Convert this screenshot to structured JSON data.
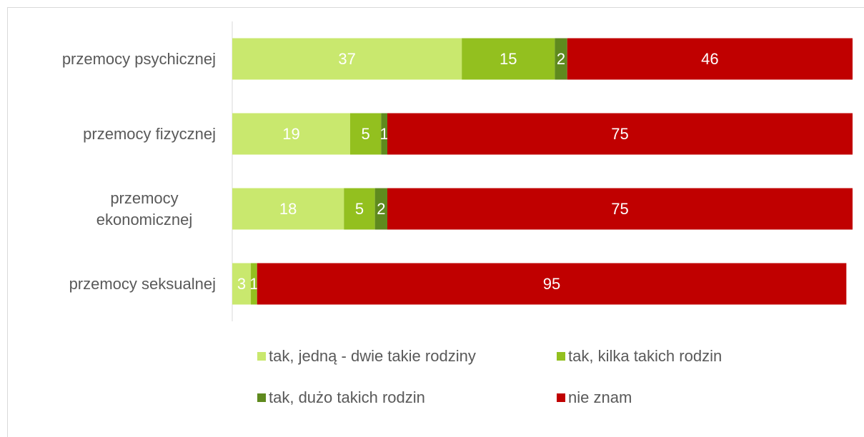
{
  "chart_data": {
    "type": "stacked-bar-horizontal",
    "categories": [
      "przemocy psychicznej",
      "przemocy fizycznej",
      "przemocy ekonomicznej",
      "przemocy seksualnej"
    ],
    "series": [
      {
        "name": "tak, jedną - dwie takie rodziny",
        "color": "#c9e86e",
        "values": [
          37,
          19,
          18,
          3
        ]
      },
      {
        "name": "tak, kilka takich rodzin",
        "color": "#93c01f",
        "values": [
          15,
          5,
          5,
          1
        ]
      },
      {
        "name": "tak, dużo takich rodzin",
        "color": "#5f8a1e",
        "values": [
          2,
          1,
          2,
          null
        ]
      },
      {
        "name": "nie znam",
        "color": "#c00000",
        "values": [
          46,
          75,
          75,
          95
        ]
      }
    ],
    "xlim": [
      0,
      100
    ]
  }
}
